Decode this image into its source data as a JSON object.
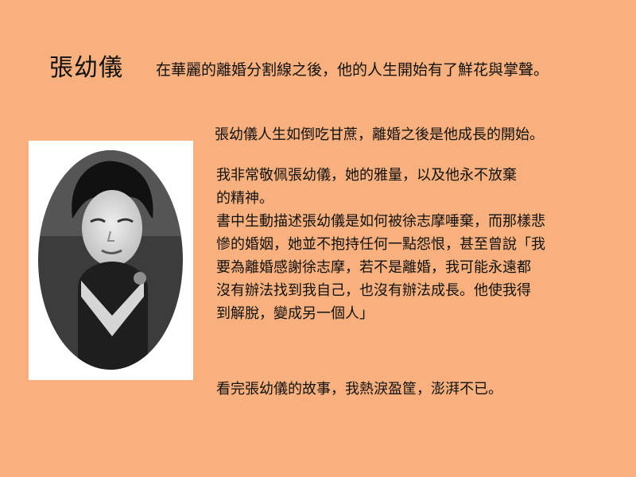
{
  "slide": {
    "title": "張幼儀",
    "subtitle": "在華麗的離婚分割線之後，他的人生開始有了鮮花與掌聲。",
    "intro": "張幼儀人生如倒吃甘蔗，離婚之後是他成長的開始。",
    "body_lines": [
      "我非常敬佩張幼儀，她的雅量，以及他永不放棄",
      "的精神。",
      "書中生動描述張幼儀是如何被徐志摩唾棄，而那樣悲",
      "慘的婚姻，她並不抱持任何一點怨恨，甚至曾說「我",
      "要為離婚感謝徐志摩，若不是離婚，我可能永遠都",
      "沒有辦法找到我自己，也沒有辦法成長。他使我得",
      "到解脫，變成另一個人」"
    ],
    "closing": "看完張幼儀的故事，我熱淚盈筐，澎湃不已。"
  },
  "colors": {
    "background": "#F8B07F",
    "text": "#111111",
    "photo_frame": "#FFFFFF"
  }
}
